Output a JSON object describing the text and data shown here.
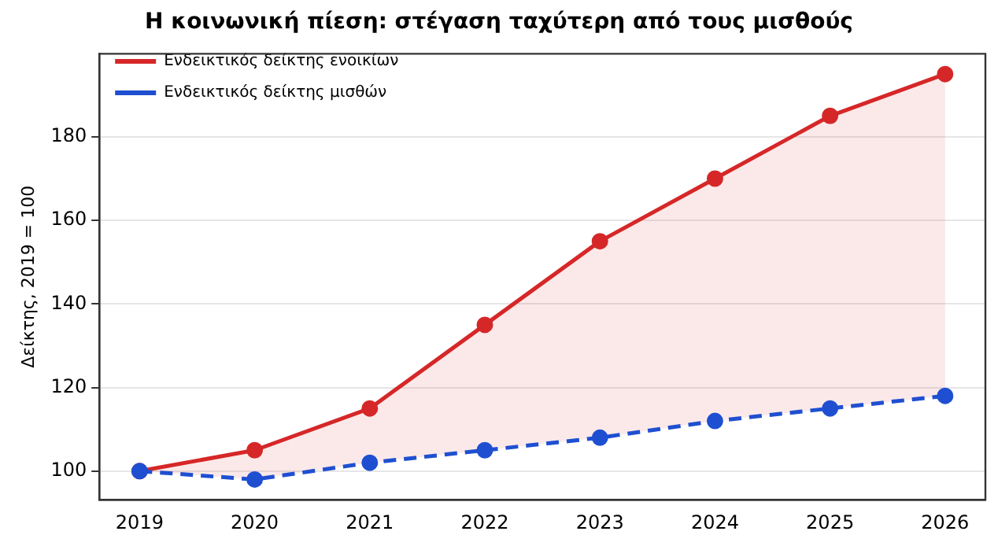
{
  "chart_data": {
    "type": "line",
    "title": "Η κοινωνική πίεση: στέγαση ταχύτερη από τους μισθούς",
    "ylabel": "Δείκτης, 2019 = 100",
    "x": [
      2019,
      2020,
      2021,
      2022,
      2023,
      2024,
      2025,
      2026
    ],
    "series": [
      {
        "name": "Ενδεικτικός δείκτης ενοικίων",
        "color": "#d62728",
        "line_style": "solid",
        "values": [
          100,
          105,
          115,
          135,
          155,
          170,
          185,
          195
        ],
        "lower": [
          100,
          98,
          102,
          105,
          108,
          112,
          115,
          118
        ],
        "upper": [
          100,
          105,
          115,
          135,
          155,
          170,
          185,
          195
        ]
      },
      {
        "name": "Ενδεικτικός δείκτης μισθών",
        "color": "#1f4fd1",
        "line_style": "dashed",
        "values": [
          100,
          98,
          102,
          105,
          108,
          112,
          115,
          118
        ]
      }
    ],
    "xlim": [
      2018.65,
      2026.35
    ],
    "xticks": [
      2019,
      2020,
      2021,
      2022,
      2023,
      2024,
      2025,
      2026
    ],
    "ylim": [
      93.15,
      199.85
    ],
    "yticks": [
      100,
      120,
      140,
      160,
      180
    ],
    "grid": "y",
    "legend": "top left",
    "marker": "circle"
  }
}
